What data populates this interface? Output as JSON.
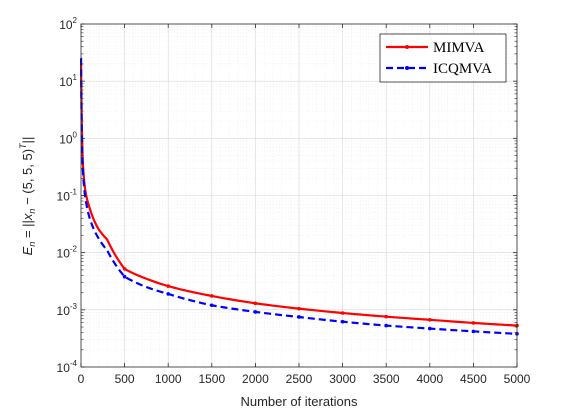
{
  "chart_data": {
    "type": "line",
    "xlabel": "Number of iterations",
    "ylabel": "E_n = ||x_n − (5, 5, 5)^T||",
    "ylabel_parts": {
      "main": "E",
      "sub": "n",
      "eq": " = ||",
      "x": "x",
      "xsub": "n",
      "mid": " − (5, 5, 5)",
      "sup": "T",
      "end": "||"
    },
    "xlim": [
      0,
      5000
    ],
    "ylim": [
      0.0001,
      100
    ],
    "yscale": "log",
    "grid": true,
    "legend_position": "top-right",
    "x_ticks": [
      "0",
      "500",
      "1000",
      "1500",
      "2000",
      "2500",
      "3000",
      "3500",
      "4000",
      "4500",
      "5000"
    ],
    "y_ticks": [
      {
        "base": "10",
        "exp": "2"
      },
      {
        "base": "10",
        "exp": "1"
      },
      {
        "base": "10",
        "exp": "0"
      },
      {
        "base": "10",
        "exp": "-1"
      },
      {
        "base": "10",
        "exp": "-2"
      },
      {
        "base": "10",
        "exp": "-3"
      },
      {
        "base": "10",
        "exp": "-4"
      }
    ],
    "series": [
      {
        "name": "MIMVA",
        "color": "#ff0000",
        "style": "solid",
        "marker": "dot",
        "x": [
          1,
          5,
          10,
          20,
          50,
          100,
          200,
          300,
          500,
          750,
          1000,
          1500,
          2000,
          2500,
          3000,
          3500,
          4000,
          4500,
          5000
        ],
        "y": [
          20,
          5,
          1.5,
          0.4,
          0.12,
          0.06,
          0.026,
          0.017,
          0.0052,
          0.0035,
          0.0026,
          0.00175,
          0.0013,
          0.00105,
          0.00088,
          0.00076,
          0.00067,
          0.00059,
          0.00053
        ]
      },
      {
        "name": "ICQMVA",
        "color": "#0000ff",
        "style": "dashed",
        "marker": "dot",
        "x": [
          1,
          5,
          10,
          20,
          50,
          100,
          200,
          300,
          500,
          750,
          1000,
          1500,
          2000,
          2500,
          3000,
          3500,
          4000,
          4500,
          5000
        ],
        "y": [
          25,
          4,
          1.1,
          0.3,
          0.09,
          0.04,
          0.018,
          0.011,
          0.0038,
          0.0025,
          0.0019,
          0.0012,
          0.00092,
          0.00075,
          0.00062,
          0.00053,
          0.00047,
          0.00042,
          0.00038
        ]
      }
    ]
  }
}
